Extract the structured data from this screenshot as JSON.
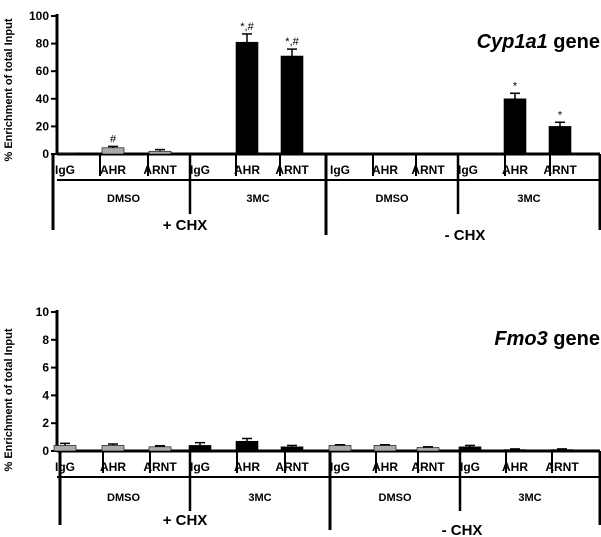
{
  "chart_data": [
    {
      "type": "bar",
      "gene_italic": "Cyp1a1",
      "gene_suffix": " gene",
      "ylabel": "% Enrichment of total Input",
      "ylim": [
        0,
        100
      ],
      "yticks": [
        "0",
        "20",
        "40",
        "60",
        "80",
        "100"
      ],
      "categories": [
        "IgG",
        "AHR",
        "ARNT",
        "IgG",
        "AHR",
        "ARNT",
        "IgG",
        "AHR",
        "ARNT",
        "IgG",
        "AHR",
        "ARNT"
      ],
      "groups": [
        "DMSO",
        "3MC",
        "DMSO",
        "3MC"
      ],
      "conditions": [
        "+ CHX",
        "- CHX"
      ],
      "values": [
        0.5,
        4.5,
        2,
        0,
        81,
        71,
        0,
        0,
        0,
        0,
        40,
        20
      ],
      "errors": [
        0,
        1,
        1.2,
        0,
        6,
        5,
        0,
        0,
        0,
        0,
        4,
        3
      ],
      "bar_colors": [
        "#aaaaaa",
        "#aaaaaa",
        "#aaaaaa",
        "#000000",
        "#000000",
        "#000000",
        "#aaaaaa",
        "#aaaaaa",
        "#aaaaaa",
        "#000000",
        "#000000",
        "#000000"
      ],
      "annotations": [
        "",
        "#",
        "",
        "",
        "*,#",
        "*,#",
        "",
        "",
        "",
        "",
        "*",
        "*"
      ]
    },
    {
      "type": "bar",
      "gene_italic": "Fmo3",
      "gene_suffix": " gene",
      "ylabel": "% Enrichment of total Input",
      "ylim": [
        0,
        10
      ],
      "yticks": [
        "0",
        "2",
        "4",
        "6",
        "8",
        "10"
      ],
      "categories": [
        "IgG",
        "AHR",
        "ARNT",
        "IgG",
        "AHR",
        "ARNT",
        "IgG",
        "AHR",
        "ARNT",
        "IgG",
        "AHR",
        "ARNT"
      ],
      "groups": [
        "DMSO",
        "3MC",
        "DMSO",
        "3MC"
      ],
      "conditions": [
        "+ CHX",
        "- CHX"
      ],
      "values": [
        0.4,
        0.4,
        0.3,
        0.4,
        0.7,
        0.3,
        0.4,
        0.4,
        0.25,
        0.3,
        0.1,
        0.1
      ],
      "errors": [
        0.15,
        0.1,
        0.08,
        0.2,
        0.2,
        0.1,
        0.05,
        0.05,
        0.05,
        0.1,
        0.05,
        0.05
      ],
      "bar_colors": [
        "#aaaaaa",
        "#aaaaaa",
        "#aaaaaa",
        "#000000",
        "#000000",
        "#000000",
        "#aaaaaa",
        "#aaaaaa",
        "#aaaaaa",
        "#000000",
        "#000000",
        "#000000"
      ],
      "annotations": [
        "",
        "",
        "",
        "",
        "",
        "",
        "",
        "",
        "",
        "",
        "",
        ""
      ]
    }
  ]
}
